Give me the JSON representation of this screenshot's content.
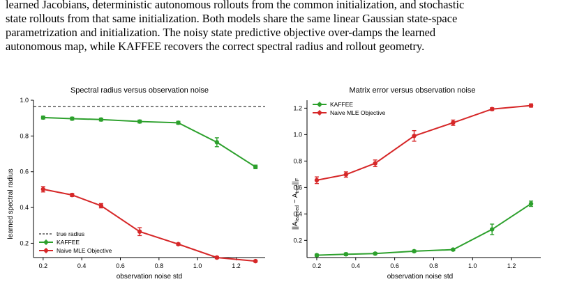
{
  "paragraph_lines": [
    "learned Jacobians, deterministic autonomous rollouts from the common initialization, and stochastic",
    "state rollouts from that same initialization. Both models share the same linear Gaussian state-space",
    "parametrization and initialization.  The noisy state predictive objective over-damps the learned",
    "autonomous map, while KAFFEE recovers the correct spectral radius and rollout geometry."
  ],
  "colors": {
    "kaffee": "#2ca02c",
    "mle": "#d62728",
    "ref": "#000000",
    "axis": "#000000"
  },
  "chart_data": [
    {
      "type": "line",
      "title": "Spectral radius versus observation noise",
      "xlabel": "observation noise std",
      "ylabel": "learned spectral radius",
      "xlim": [
        0.15,
        1.35
      ],
      "ylim": [
        0.12,
        1.0
      ],
      "xticks": [
        "0.2",
        "0.4",
        "0.6",
        "0.8",
        "1.0",
        "1.2"
      ],
      "yticks": [
        "0.2",
        "0.4",
        "0.6",
        "0.8",
        "1.0"
      ],
      "legend_position": "lower-left",
      "reference_line": {
        "label": "true radius",
        "y": 0.965
      },
      "x": [
        0.2,
        0.35,
        0.5,
        0.7,
        0.9,
        1.1,
        1.3
      ],
      "series": [
        {
          "name": "KAFFEE",
          "color_key": "kaffee",
          "values": [
            0.903,
            0.897,
            0.892,
            0.881,
            0.874,
            0.765,
            0.627
          ],
          "errors": [
            0.008,
            0.008,
            0.008,
            0.008,
            0.008,
            0.025,
            0.01
          ]
        },
        {
          "name": "Naive MLE Objective",
          "color_key": "mle",
          "values": [
            0.502,
            0.47,
            0.41,
            0.265,
            0.195,
            0.12,
            0.1
          ],
          "errors": [
            0.015,
            0.008,
            0.012,
            0.022,
            0.006,
            0.006,
            0.005
          ]
        }
      ]
    },
    {
      "type": "line",
      "title": "Matrix error versus observation noise",
      "xlabel": "observation noise std",
      "ylabel": "||A_learned − A_true||_F",
      "ylabel_parts": {
        "main": "A",
        "sub1": "learned",
        "minus": "−",
        "sub2": "true",
        "norm": "F"
      },
      "xlim": [
        0.15,
        1.35
      ],
      "ylim": [
        0.07,
        1.26
      ],
      "xticks": [
        "0.2",
        "0.4",
        "0.6",
        "0.8",
        "1.0",
        "1.2"
      ],
      "yticks": [
        "0.2",
        "0.4",
        "0.6",
        "0.8",
        "1.0",
        "1.2"
      ],
      "legend_position": "upper-left",
      "x": [
        0.2,
        0.35,
        0.5,
        0.7,
        0.9,
        1.1,
        1.3
      ],
      "series": [
        {
          "name": "KAFFEE",
          "color_key": "kaffee",
          "values": [
            0.088,
            0.095,
            0.1,
            0.118,
            0.13,
            0.283,
            0.477
          ],
          "errors": [
            0.008,
            0.01,
            0.008,
            0.008,
            0.008,
            0.04,
            0.02
          ]
        },
        {
          "name": "Naive MLE Objective",
          "color_key": "mle",
          "values": [
            0.655,
            0.698,
            0.783,
            0.99,
            1.09,
            1.193,
            1.22
          ],
          "errors": [
            0.025,
            0.02,
            0.025,
            0.04,
            0.02,
            0.01,
            0.012
          ]
        }
      ]
    }
  ]
}
